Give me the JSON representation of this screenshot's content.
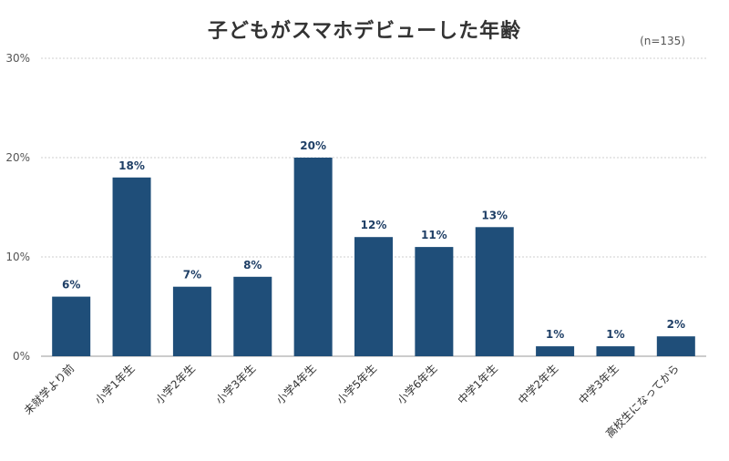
{
  "title": "子どもがスマホデビューした年齢",
  "sample_note": "(n=135)",
  "colors": {
    "bar": "#1f4e79",
    "label": "#1f3f66",
    "grid": "#cfcfcf"
  },
  "chart_data": {
    "type": "bar",
    "categories": [
      "未就学より前",
      "小学1年生",
      "小学2年生",
      "小学3年生",
      "小学4年生",
      "小学5年生",
      "小学6年生",
      "中学1年生",
      "中学2年生",
      "中学3年生",
      "高校生になってから"
    ],
    "values": [
      6,
      18,
      7,
      8,
      20,
      12,
      11,
      13,
      1,
      1,
      2
    ],
    "data_labels": [
      "6%",
      "18%",
      "7%",
      "8%",
      "20%",
      "12%",
      "11%",
      "13%",
      "1%",
      "1%",
      "2%"
    ],
    "y_ticks": [
      0,
      10,
      20,
      30
    ],
    "y_tick_labels": [
      "0%",
      "10%",
      "20%",
      "30%"
    ],
    "ylim": [
      0,
      30
    ],
    "grid": true,
    "xlabel": "",
    "ylabel": ""
  }
}
